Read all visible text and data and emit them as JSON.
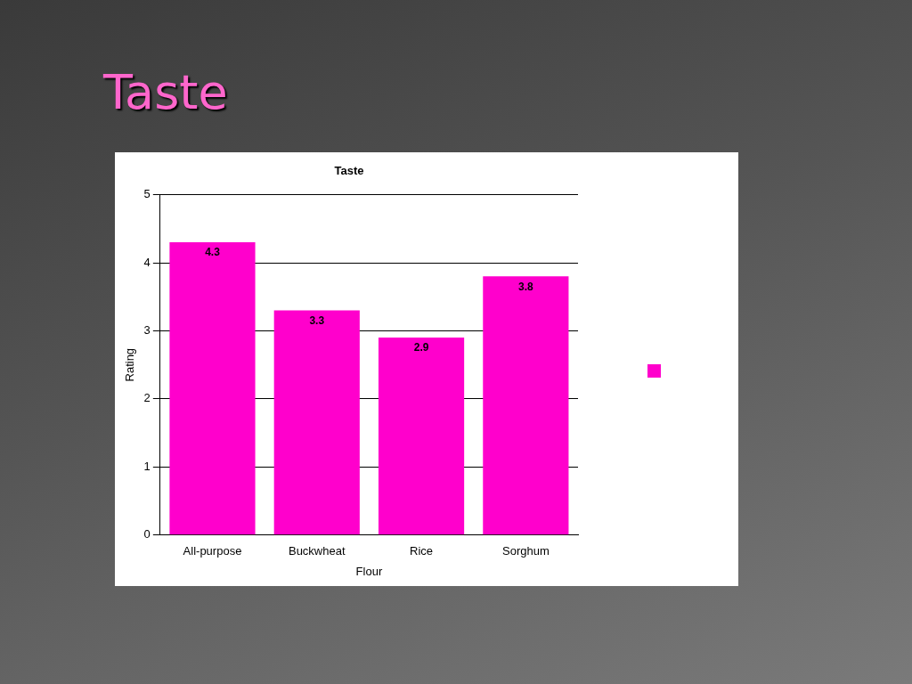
{
  "chart_data": {
    "type": "bar",
    "title": "Taste",
    "xlabel": "Flour",
    "ylabel": "Rating",
    "annotations": [
      "Taste"
    ],
    "categories": [
      "All-purpose",
      "Buckwheat",
      "Rice",
      "Sorghum"
    ],
    "series": [
      {
        "color": "#ff00cc",
        "values": [
          4.3,
          3.3,
          2.9,
          3.8
        ]
      }
    ],
    "ylim": [
      0,
      5
    ],
    "yticks": [
      0,
      1,
      2,
      3,
      4,
      5
    ],
    "grid": "y",
    "data_labels": true
  }
}
